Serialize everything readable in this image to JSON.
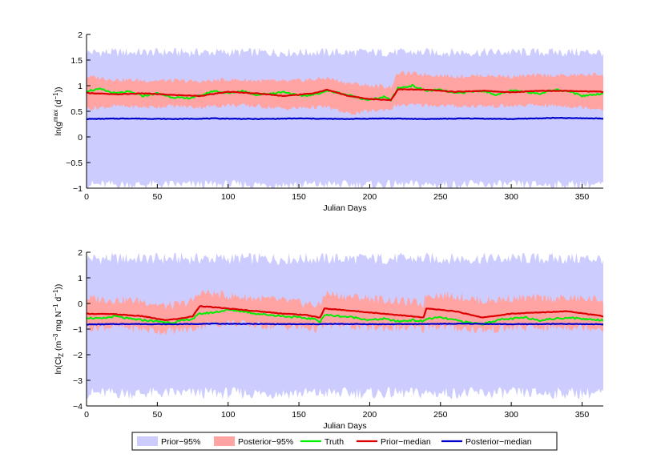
{
  "chart_data": [
    {
      "type": "line",
      "xlabel": "Julian Days",
      "ylabel_parts": {
        "pre": "ln(g",
        "sup1": "max",
        "mid": " (d",
        "sup2": "−1",
        "post": "))"
      },
      "xlim": [
        0,
        365
      ],
      "ylim": [
        -1,
        2
      ],
      "xticks": [
        0,
        50,
        100,
        150,
        200,
        250,
        300,
        350
      ],
      "yticks": [
        -1,
        -0.5,
        0,
        0.5,
        1,
        1.5,
        2
      ],
      "prior_band": {
        "lower": -0.93,
        "upper": 1.65
      },
      "series": [
        {
          "name": "Posterior-95%",
          "key": "post_band",
          "x": [
            0,
            20,
            40,
            60,
            80,
            100,
            120,
            140,
            160,
            170,
            185,
            200,
            215,
            220,
            240,
            260,
            280,
            300,
            320,
            340,
            365
          ],
          "lower": [
            0.55,
            0.6,
            0.58,
            0.6,
            0.58,
            0.62,
            0.6,
            0.55,
            0.58,
            0.58,
            0.45,
            0.5,
            0.55,
            0.62,
            0.62,
            0.6,
            0.6,
            0.6,
            0.62,
            0.6,
            0.55
          ],
          "upper": [
            1.18,
            1.12,
            1.1,
            1.1,
            1.08,
            1.12,
            1.1,
            1.08,
            1.12,
            1.15,
            1.05,
            1.0,
            0.98,
            1.25,
            1.22,
            1.18,
            1.2,
            1.18,
            1.2,
            1.2,
            1.22
          ]
        },
        {
          "name": "Truth",
          "key": "truth",
          "x": [
            0,
            10,
            20,
            30,
            40,
            50,
            60,
            70,
            80,
            90,
            100,
            110,
            120,
            130,
            140,
            150,
            160,
            170,
            180,
            190,
            200,
            210,
            215,
            220,
            230,
            240,
            250,
            260,
            270,
            280,
            290,
            300,
            310,
            320,
            330,
            340,
            350,
            365
          ],
          "y": [
            0.9,
            0.93,
            0.85,
            0.88,
            0.8,
            0.85,
            0.78,
            0.75,
            0.8,
            0.9,
            0.85,
            0.9,
            0.82,
            0.85,
            0.88,
            0.8,
            0.82,
            0.9,
            0.85,
            0.78,
            0.72,
            0.78,
            0.72,
            0.95,
            1.0,
            0.9,
            0.92,
            0.85,
            0.88,
            0.9,
            0.82,
            0.9,
            0.88,
            0.85,
            0.92,
            0.9,
            0.8,
            0.85
          ]
        },
        {
          "name": "Prior-median",
          "key": "prior_med",
          "x": [
            0,
            20,
            40,
            60,
            80,
            100,
            120,
            140,
            160,
            170,
            185,
            200,
            215,
            220,
            240,
            260,
            280,
            300,
            320,
            340,
            365
          ],
          "y": [
            0.86,
            0.83,
            0.85,
            0.82,
            0.8,
            0.88,
            0.85,
            0.8,
            0.85,
            0.92,
            0.8,
            0.74,
            0.72,
            0.93,
            0.92,
            0.88,
            0.9,
            0.87,
            0.9,
            0.9,
            0.88
          ]
        },
        {
          "name": "Posterior-median",
          "key": "post_med",
          "x": [
            0,
            30,
            60,
            90,
            120,
            150,
            180,
            210,
            240,
            270,
            300,
            330,
            365
          ],
          "y": [
            0.35,
            0.36,
            0.35,
            0.36,
            0.35,
            0.36,
            0.35,
            0.36,
            0.35,
            0.36,
            0.35,
            0.37,
            0.36
          ]
        }
      ]
    },
    {
      "type": "line",
      "xlabel": "Julian Days",
      "ylabel_parts": {
        "pre": "ln(Cl",
        "sub1": "Z",
        "mid": " (m",
        "sup1": "−3",
        "mid2": " mg N",
        "sup2": "−1",
        "mid3": " d",
        "sup3": "−1",
        "post": "))"
      },
      "xlim": [
        0,
        365
      ],
      "ylim": [
        -4,
        2
      ],
      "xticks": [
        0,
        50,
        100,
        150,
        200,
        250,
        300,
        350
      ],
      "yticks": [
        -4,
        -3,
        -2,
        -1,
        0,
        1,
        2
      ],
      "prior_band": {
        "lower": -3.5,
        "upper": 1.75
      },
      "series": [
        {
          "name": "Posterior-95%",
          "key": "post_band",
          "x": [
            0,
            20,
            40,
            55,
            65,
            75,
            80,
            100,
            120,
            140,
            155,
            165,
            168,
            180,
            200,
            220,
            238,
            240,
            260,
            280,
            300,
            320,
            340,
            365
          ],
          "lower": [
            -0.95,
            -0.9,
            -1.0,
            -1.1,
            -1.05,
            -1.0,
            -0.85,
            -0.75,
            -0.85,
            -0.9,
            -0.95,
            -1.0,
            -0.85,
            -0.85,
            -0.95,
            -0.95,
            -1.0,
            -0.85,
            -0.95,
            -1.05,
            -0.95,
            -0.95,
            -0.9,
            -0.95
          ],
          "upper": [
            0.2,
            0.15,
            0.1,
            -0.1,
            -0.05,
            0.1,
            0.45,
            0.3,
            0.2,
            0.1,
            0.0,
            -0.1,
            0.4,
            0.3,
            0.2,
            0.1,
            0.0,
            0.35,
            0.3,
            0.1,
            0.2,
            0.2,
            0.2,
            0.15
          ]
        },
        {
          "name": "Truth",
          "key": "truth",
          "x": [
            0,
            10,
            20,
            30,
            40,
            50,
            60,
            70,
            75,
            80,
            90,
            100,
            110,
            120,
            130,
            140,
            150,
            160,
            165,
            168,
            180,
            190,
            200,
            210,
            220,
            230,
            238,
            240,
            250,
            260,
            270,
            280,
            290,
            300,
            310,
            320,
            330,
            340,
            350,
            365
          ],
          "y": [
            -0.55,
            -0.6,
            -0.5,
            -0.6,
            -0.65,
            -0.7,
            -0.75,
            -0.65,
            -0.6,
            -0.4,
            -0.35,
            -0.25,
            -0.3,
            -0.4,
            -0.45,
            -0.5,
            -0.55,
            -0.6,
            -0.7,
            -0.45,
            -0.5,
            -0.55,
            -0.65,
            -0.6,
            -0.7,
            -0.65,
            -0.7,
            -0.6,
            -0.55,
            -0.65,
            -0.75,
            -0.8,
            -0.65,
            -0.6,
            -0.55,
            -0.65,
            -0.6,
            -0.55,
            -0.6,
            -0.65
          ]
        },
        {
          "name": "Prior-median",
          "key": "prior_med",
          "x": [
            0,
            20,
            40,
            55,
            65,
            75,
            80,
            100,
            120,
            140,
            155,
            165,
            168,
            180,
            200,
            220,
            238,
            240,
            260,
            280,
            300,
            320,
            340,
            365
          ],
          "y": [
            -0.4,
            -0.42,
            -0.5,
            -0.65,
            -0.6,
            -0.5,
            -0.1,
            -0.2,
            -0.3,
            -0.4,
            -0.45,
            -0.55,
            -0.2,
            -0.25,
            -0.35,
            -0.45,
            -0.55,
            -0.2,
            -0.3,
            -0.55,
            -0.4,
            -0.35,
            -0.3,
            -0.5
          ]
        },
        {
          "name": "Posterior-median",
          "key": "post_med",
          "x": [
            0,
            30,
            60,
            90,
            120,
            150,
            180,
            210,
            240,
            270,
            300,
            330,
            365
          ],
          "y": [
            -0.82,
            -0.8,
            -0.81,
            -0.79,
            -0.8,
            -0.81,
            -0.8,
            -0.81,
            -0.8,
            -0.79,
            -0.81,
            -0.8,
            -0.81
          ]
        }
      ]
    }
  ],
  "legend": {
    "placement": "bottom-center",
    "items": [
      {
        "label": "Prior−95%",
        "kind": "patch",
        "color": "#ccccff"
      },
      {
        "label": "Posterior−95%",
        "kind": "patch",
        "color": "#ffa3a3"
      },
      {
        "label": "Truth",
        "kind": "line",
        "color": "#00ee00"
      },
      {
        "label": "Prior−median",
        "kind": "line",
        "color": "#dd0000"
      },
      {
        "label": "Posterior−median",
        "kind": "line",
        "color": "#0000cc"
      }
    ]
  },
  "colors": {
    "prior_band": "#ccccff",
    "post_band": "#ffa3a3",
    "truth": "#00ee00",
    "prior_med": "#dd0000",
    "post_med": "#0000cc"
  }
}
